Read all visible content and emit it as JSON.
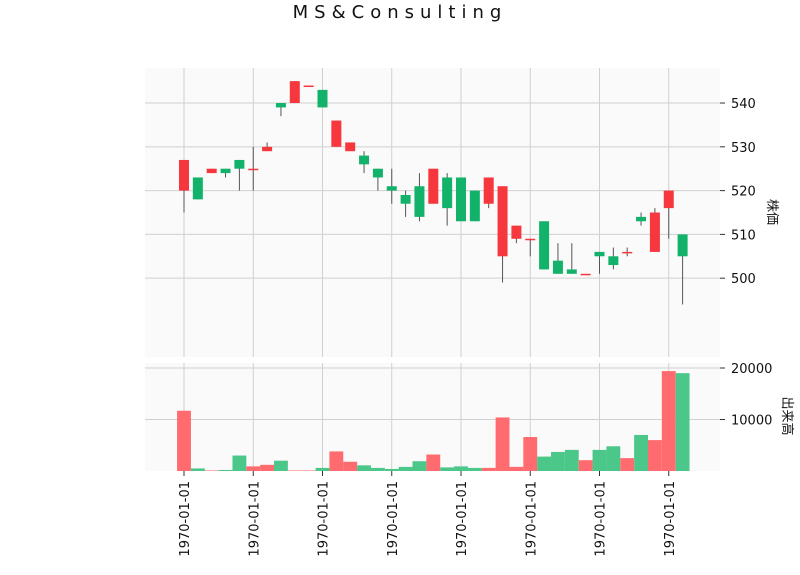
{
  "chart_data": {
    "type": "candlestick",
    "title": "MS&Consulting",
    "ylabel_price": "株価",
    "ylabel_volume": "出来高",
    "price_ylim": [
      482,
      548
    ],
    "price_yticks": [
      500,
      510,
      520,
      530,
      540
    ],
    "volume_ylim": [
      0,
      20000
    ],
    "volume_yticks": [
      10000,
      20000
    ],
    "xtick_labels": [
      "1970-01-01",
      "1970-01-01",
      "1970-01-01",
      "1970-01-01",
      "1970-01-01",
      "1970-01-01",
      "1970-01-01",
      "1970-01-01"
    ],
    "xtick_indices": [
      0,
      5,
      10,
      15,
      20,
      25,
      30,
      35
    ],
    "grid": true,
    "up_color": "#f6373d",
    "down_color": "#13b26a",
    "up_volume_color": "#ff6b6e",
    "down_volume_color": "#4bc78a",
    "candles": [
      {
        "open": 520,
        "high": 527,
        "low": 515,
        "close": 527,
        "volume": 11700
      },
      {
        "open": 523,
        "high": 523,
        "low": 518,
        "close": 518,
        "volume": 500
      },
      {
        "open": 524,
        "high": 525,
        "low": 524,
        "close": 525,
        "volume": 100
      },
      {
        "open": 525,
        "high": 525,
        "low": 523,
        "close": 524,
        "volume": 200
      },
      {
        "open": 527,
        "high": 527,
        "low": 520,
        "close": 525,
        "volume": 3000
      },
      {
        "open": 525,
        "high": 530,
        "low": 520,
        "close": 525,
        "volume": 900
      },
      {
        "open": 529,
        "high": 531,
        "low": 529,
        "close": 530,
        "volume": 1200
      },
      {
        "open": 540,
        "high": 540,
        "low": 537,
        "close": 539,
        "volume": 2000
      },
      {
        "open": 540,
        "high": 545,
        "low": 540,
        "close": 545,
        "volume": 100
      },
      {
        "open": 544,
        "high": 544,
        "low": 544,
        "close": 544,
        "volume": 100
      },
      {
        "open": 543,
        "high": 543,
        "low": 539,
        "close": 539,
        "volume": 600
      },
      {
        "open": 530,
        "high": 536,
        "low": 530,
        "close": 536,
        "volume": 3800
      },
      {
        "open": 529,
        "high": 531,
        "low": 529,
        "close": 531,
        "volume": 1800
      },
      {
        "open": 528,
        "high": 529,
        "low": 524,
        "close": 526,
        "volume": 1100
      },
      {
        "open": 525,
        "high": 525,
        "low": 520,
        "close": 523,
        "volume": 600
      },
      {
        "open": 521,
        "high": 525,
        "low": 517,
        "close": 520,
        "volume": 400
      },
      {
        "open": 519,
        "high": 520,
        "low": 514,
        "close": 517,
        "volume": 800
      },
      {
        "open": 521,
        "high": 524,
        "low": 513,
        "close": 514,
        "volume": 1900
      },
      {
        "open": 517,
        "high": 525,
        "low": 517,
        "close": 525,
        "volume": 3200
      },
      {
        "open": 523,
        "high": 524,
        "low": 512,
        "close": 516,
        "volume": 700
      },
      {
        "open": 523,
        "high": 523,
        "low": 513,
        "close": 513,
        "volume": 900
      },
      {
        "open": 520,
        "high": 520,
        "low": 513,
        "close": 513,
        "volume": 600
      },
      {
        "open": 517,
        "high": 523,
        "low": 516,
        "close": 523,
        "volume": 600
      },
      {
        "open": 505,
        "high": 521,
        "low": 499,
        "close": 521,
        "volume": 10400
      },
      {
        "open": 509,
        "high": 512,
        "low": 508,
        "close": 512,
        "volume": 800
      },
      {
        "open": 509,
        "high": 509,
        "low": 505,
        "close": 509,
        "volume": 6600
      },
      {
        "open": 513,
        "high": 513,
        "low": 502,
        "close": 502,
        "volume": 2800
      },
      {
        "open": 504,
        "high": 508,
        "low": 501,
        "close": 501,
        "volume": 3700
      },
      {
        "open": 502,
        "high": 508,
        "low": 501,
        "close": 501,
        "volume": 4100
      },
      {
        "open": 501,
        "high": 501,
        "low": 501,
        "close": 501,
        "volume": 2100
      },
      {
        "open": 506,
        "high": 506,
        "low": 501,
        "close": 505,
        "volume": 4100
      },
      {
        "open": 505,
        "high": 507,
        "low": 502,
        "close": 503,
        "volume": 4800
      },
      {
        "open": 506,
        "high": 507,
        "low": 505,
        "close": 506,
        "volume": 2500
      },
      {
        "open": 514,
        "high": 515,
        "low": 512,
        "close": 513,
        "volume": 7000
      },
      {
        "open": 506,
        "high": 516,
        "low": 506,
        "close": 515,
        "volume": 6000
      },
      {
        "open": 516,
        "high": 520,
        "low": 509,
        "close": 520,
        "volume": 19400
      },
      {
        "open": 510,
        "high": 510,
        "low": 494,
        "close": 505,
        "volume": 19000
      }
    ]
  }
}
